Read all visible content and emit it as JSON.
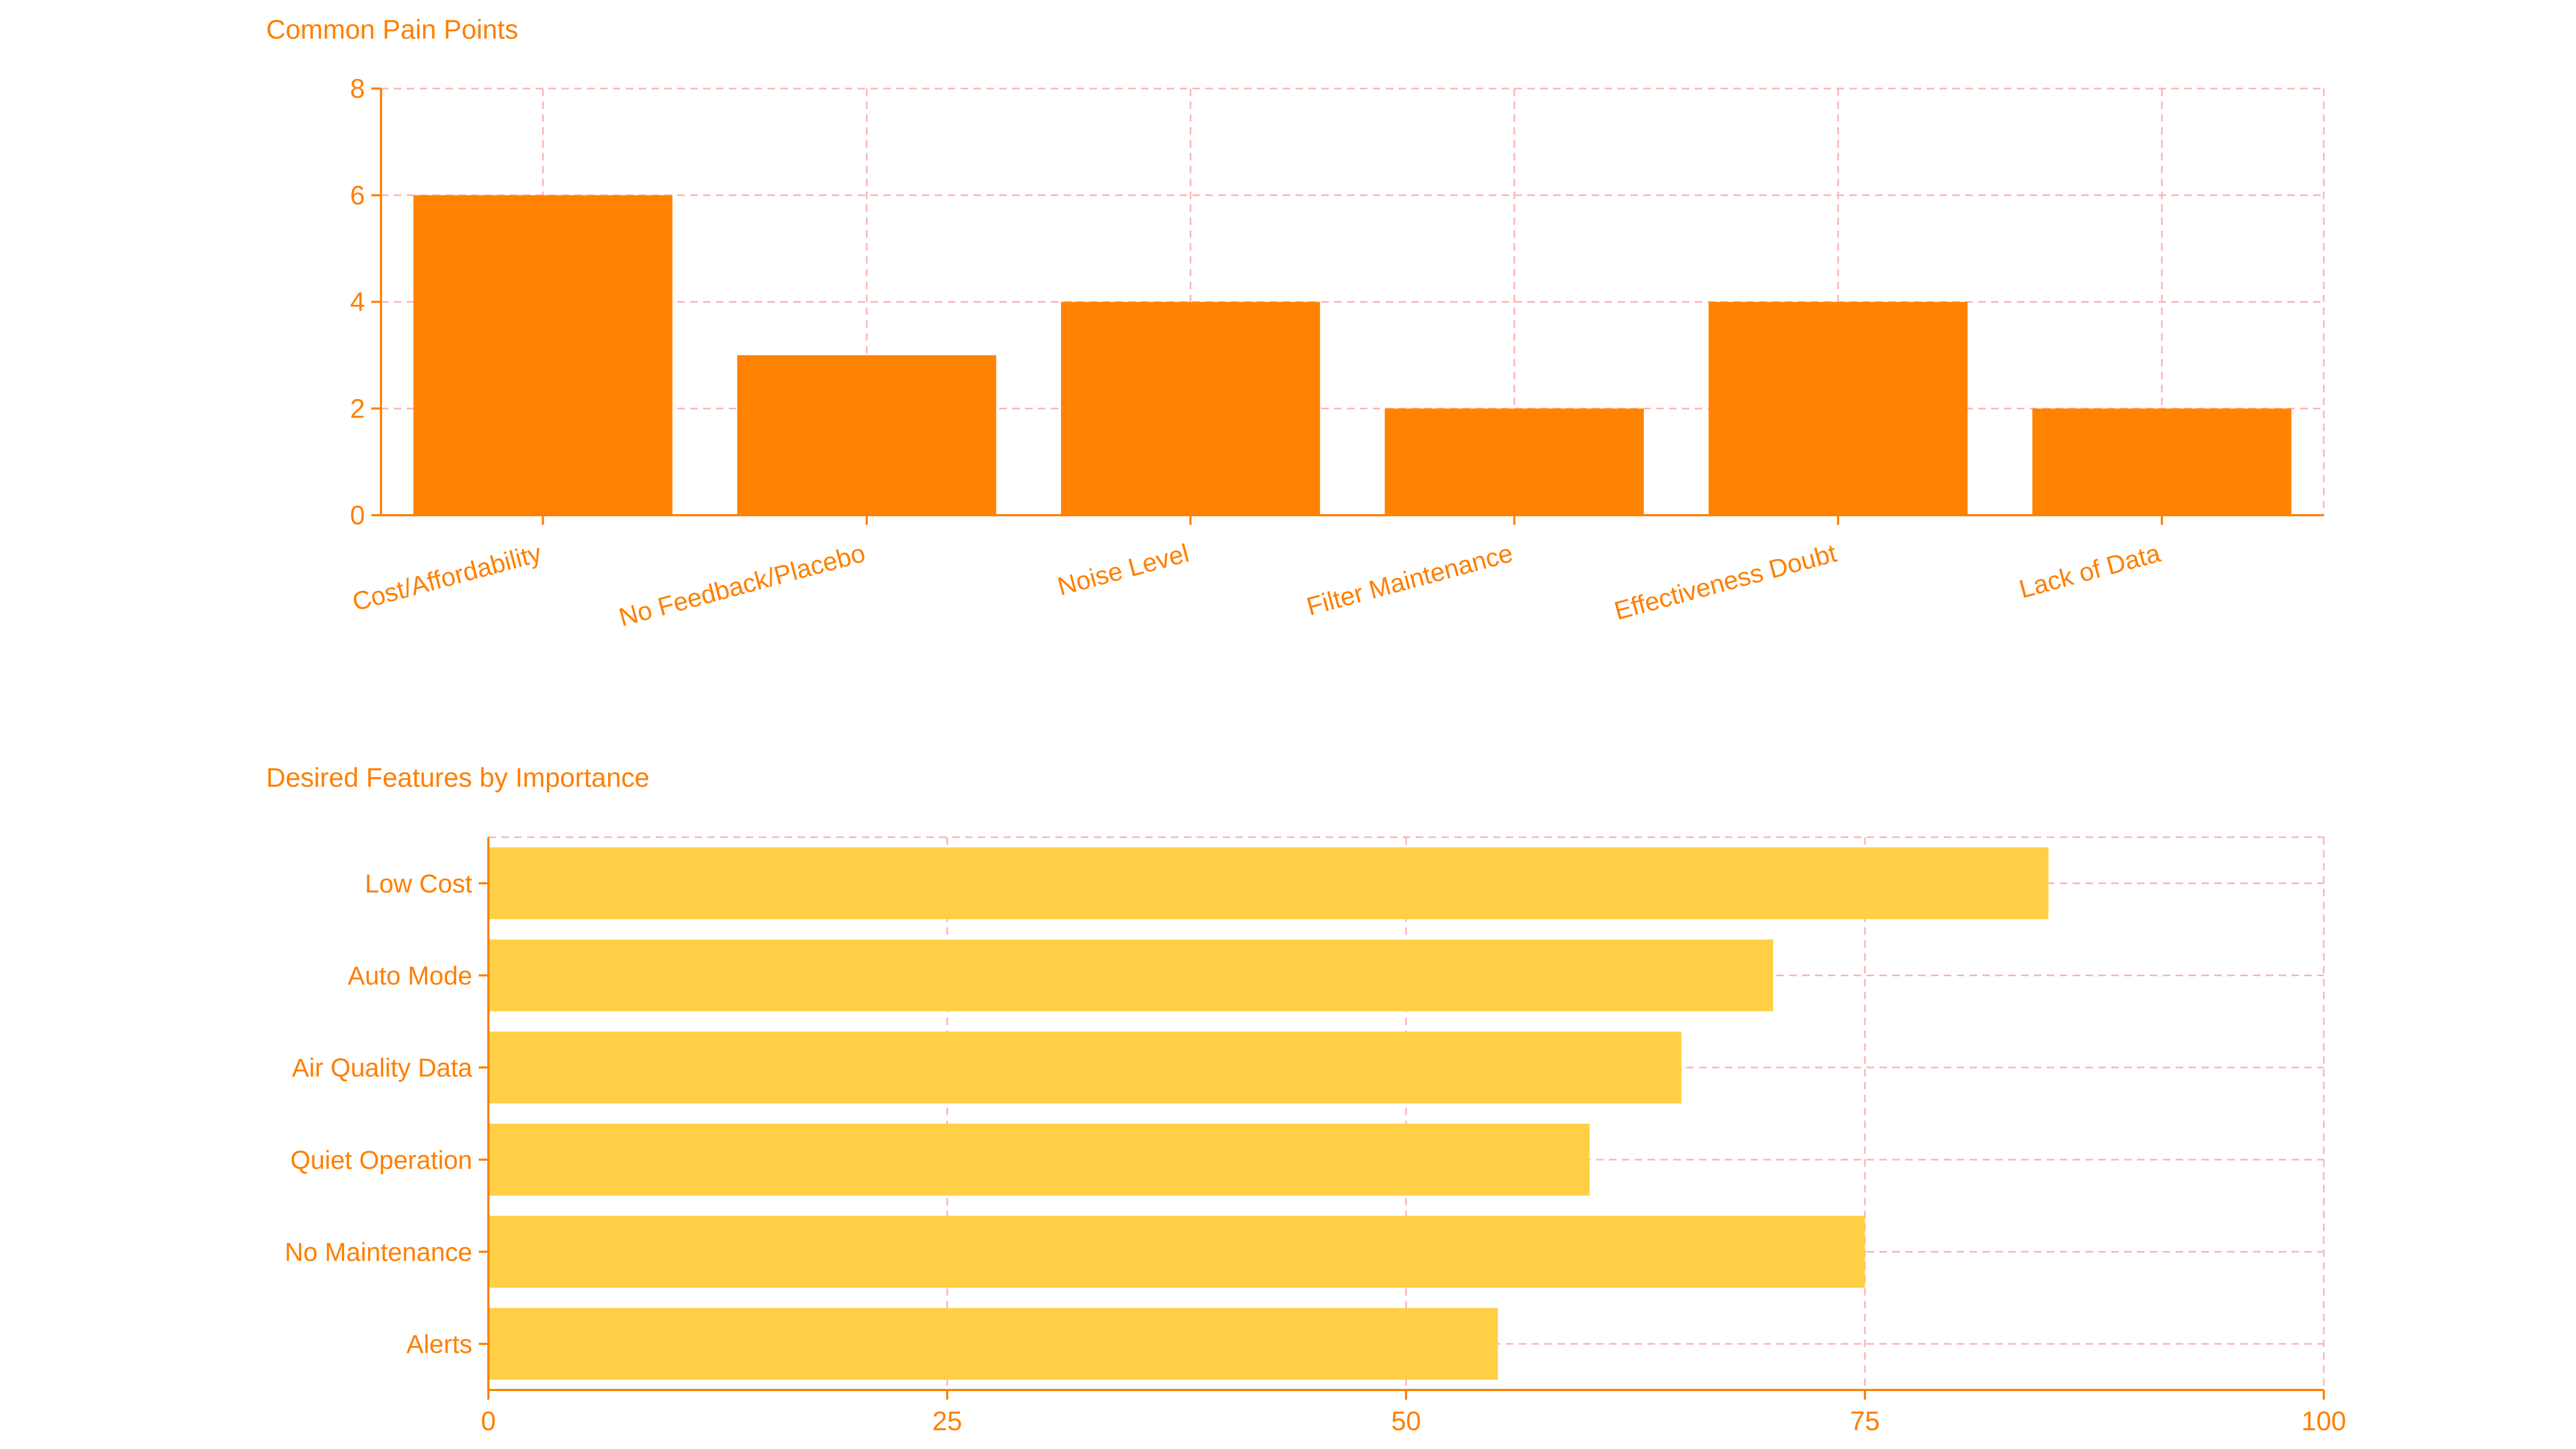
{
  "chart_data": [
    {
      "type": "bar",
      "title": "Common Pain Points",
      "xlabel": "",
      "ylabel": "",
      "categories": [
        "Cost/Affordability",
        "No Feedback/Placebo",
        "Noise Level",
        "Filter Maintenance",
        "Effectiveness Doubt",
        "Lack of Data"
      ],
      "values": [
        6,
        3,
        4,
        2,
        4,
        2
      ],
      "ylim": [
        0,
        8
      ],
      "yticks": [
        "0",
        "2",
        "4",
        "6",
        "8"
      ],
      "orientation": "vertical",
      "color": "#ff8300",
      "grid": true
    },
    {
      "type": "bar",
      "title": "Desired Features by Importance",
      "xlabel": "",
      "ylabel": "",
      "categories": [
        "Low Cost",
        "Auto Mode",
        "Air Quality Data",
        "Quiet Operation",
        "No Maintenance",
        "Alerts"
      ],
      "values": [
        85,
        70,
        65,
        60,
        75,
        55
      ],
      "xlim": [
        0,
        100
      ],
      "xticks": [
        "0",
        "25",
        "50",
        "75",
        "100"
      ],
      "orientation": "horizontal",
      "color": "#ffcf45",
      "grid": true
    }
  ]
}
